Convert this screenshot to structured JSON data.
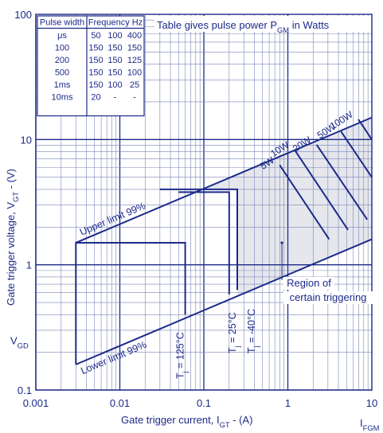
{
  "chart_data": {
    "type": "line",
    "x_scale": "log",
    "y_scale": "log",
    "xlim": [
      0.001,
      10
    ],
    "ylim": [
      0.1,
      100
    ],
    "x_ticks": [
      {
        "v": 0.001,
        "label": "0.001"
      },
      {
        "v": 0.01,
        "label": "0.01"
      },
      {
        "v": 0.1,
        "label": "0.1"
      },
      {
        "v": 1,
        "label": "1"
      },
      {
        "v": 10,
        "label": "10"
      }
    ],
    "y_ticks": [
      {
        "v": 0.1,
        "label": "0.1"
      },
      {
        "v": 1,
        "label": "1"
      },
      {
        "v": 10,
        "label": "10"
      },
      {
        "v": 100,
        "label": "100"
      }
    ],
    "xlabel": "Gate trigger current, I",
    "xlabel_sub": "GT",
    "xlabel_suffix": " - (A)",
    "ylabel": "Gate trigger voltage, V",
    "ylabel_sub": "GT",
    "ylabel_suffix": " - (V)",
    "ifgm_label": "I",
    "ifgm_sub": "FGM",
    "vgd_label": "V",
    "vgd_sub": "GD",
    "vgd_value": 0.25,
    "grid": true,
    "table_note": "Table gives pulse power P",
    "table_note_sub": "GM",
    "table_note_suffix": " in Watts",
    "pulse_table": {
      "header_col1": "Pulse width",
      "header_col2": "Frequency Hz",
      "unit": "μs",
      "frequencies": [
        "50",
        "100",
        "400"
      ],
      "rows": [
        {
          "width": "100",
          "values": [
            "150",
            "150",
            "150"
          ]
        },
        {
          "width": "200",
          "values": [
            "150",
            "150",
            "125"
          ]
        },
        {
          "width": "500",
          "values": [
            "150",
            "150",
            "100"
          ]
        },
        {
          "width": "1ms",
          "values": [
            "150",
            "100",
            "25"
          ]
        },
        {
          "width": "10ms",
          "values": [
            "20",
            "-",
            "-"
          ]
        }
      ]
    },
    "upper_limit": {
      "label": "Upper limit 99%",
      "points": [
        [
          0.003,
          1.5
        ],
        [
          10,
          15
        ]
      ]
    },
    "lower_limit": {
      "label": "Lower limit 99%",
      "points": [
        [
          0.003,
          0.16
        ],
        [
          10,
          1.6
        ]
      ]
    },
    "trigger_boxes": [
      {
        "label": "T",
        "label_sub": "j",
        "label_suffix": " = 125°C",
        "points": [
          [
            0.003,
            0.16
          ],
          [
            0.003,
            1.5
          ],
          [
            0.06,
            1.5
          ],
          [
            0.06,
            0.4
          ]
        ]
      },
      {
        "label": "T",
        "label_sub": "j",
        "label_suffix": " = 25°C",
        "points": [
          [
            0.2,
            0.58
          ],
          [
            0.2,
            3.8
          ],
          [
            0.05,
            3.8
          ]
        ]
      },
      {
        "label": "T",
        "label_sub": "j",
        "label_suffix": " = -40°C",
        "points": [
          [
            0.25,
            0.63
          ],
          [
            0.25,
            4.0
          ],
          [
            0.03,
            4.0
          ]
        ]
      }
    ],
    "region_label": [
      "Region of",
      "certain triggering"
    ],
    "power_curves": [
      {
        "name": "5W",
        "points": [
          [
            0.8,
            6.25
          ],
          [
            3.1,
            1.6
          ]
        ]
      },
      {
        "name": "10W",
        "points": [
          [
            1.2,
            8.3
          ],
          [
            5.2,
            1.9
          ]
        ]
      },
      {
        "name": "20W",
        "points": [
          [
            2.2,
            9.1
          ],
          [
            8.8,
            2.3
          ]
        ]
      },
      {
        "name": "50W",
        "points": [
          [
            4.3,
            11.6
          ],
          [
            10,
            5.0
          ]
        ]
      },
      {
        "name": "100W",
        "points": [
          [
            6.9,
            14.5
          ],
          [
            10,
            10
          ]
        ]
      }
    ],
    "colors": {
      "line": "#1c2a8a",
      "shade": "#e5e7ec",
      "grid_major": "#1c2a8a",
      "grid_minor": "#7b85b8"
    }
  }
}
